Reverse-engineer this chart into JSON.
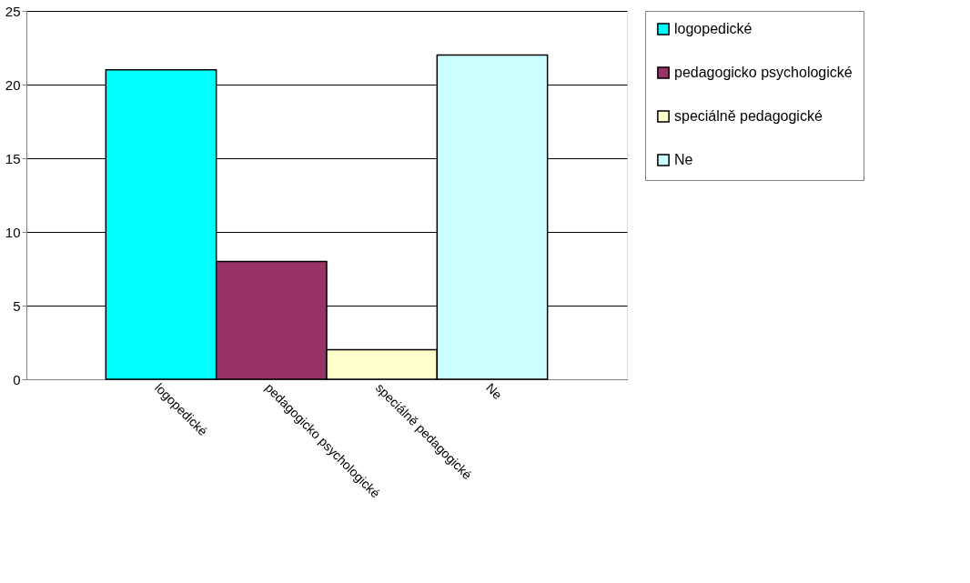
{
  "chart_data": {
    "type": "bar",
    "categories": [
      "logopedické",
      "pedagogicko psychologické",
      "speciálně pedagogické",
      "Ne"
    ],
    "series": [
      {
        "name": "logopedické",
        "color": "#00ffff",
        "values": [
          21,
          null,
          null,
          null
        ]
      },
      {
        "name": "pedagogicko psychologické",
        "color": "#993366",
        "values": [
          null,
          8,
          null,
          null
        ]
      },
      {
        "name": "speciálně pedagogické",
        "color": "#ffffcc",
        "values": [
          null,
          null,
          2,
          null
        ]
      },
      {
        "name": "Ne",
        "color": "#ccffff",
        "values": [
          null,
          null,
          null,
          22
        ]
      }
    ],
    "ylim": [
      0,
      25
    ],
    "yticks": [
      0,
      5,
      10,
      15,
      20,
      25
    ],
    "grid": "y",
    "legend": "right"
  }
}
